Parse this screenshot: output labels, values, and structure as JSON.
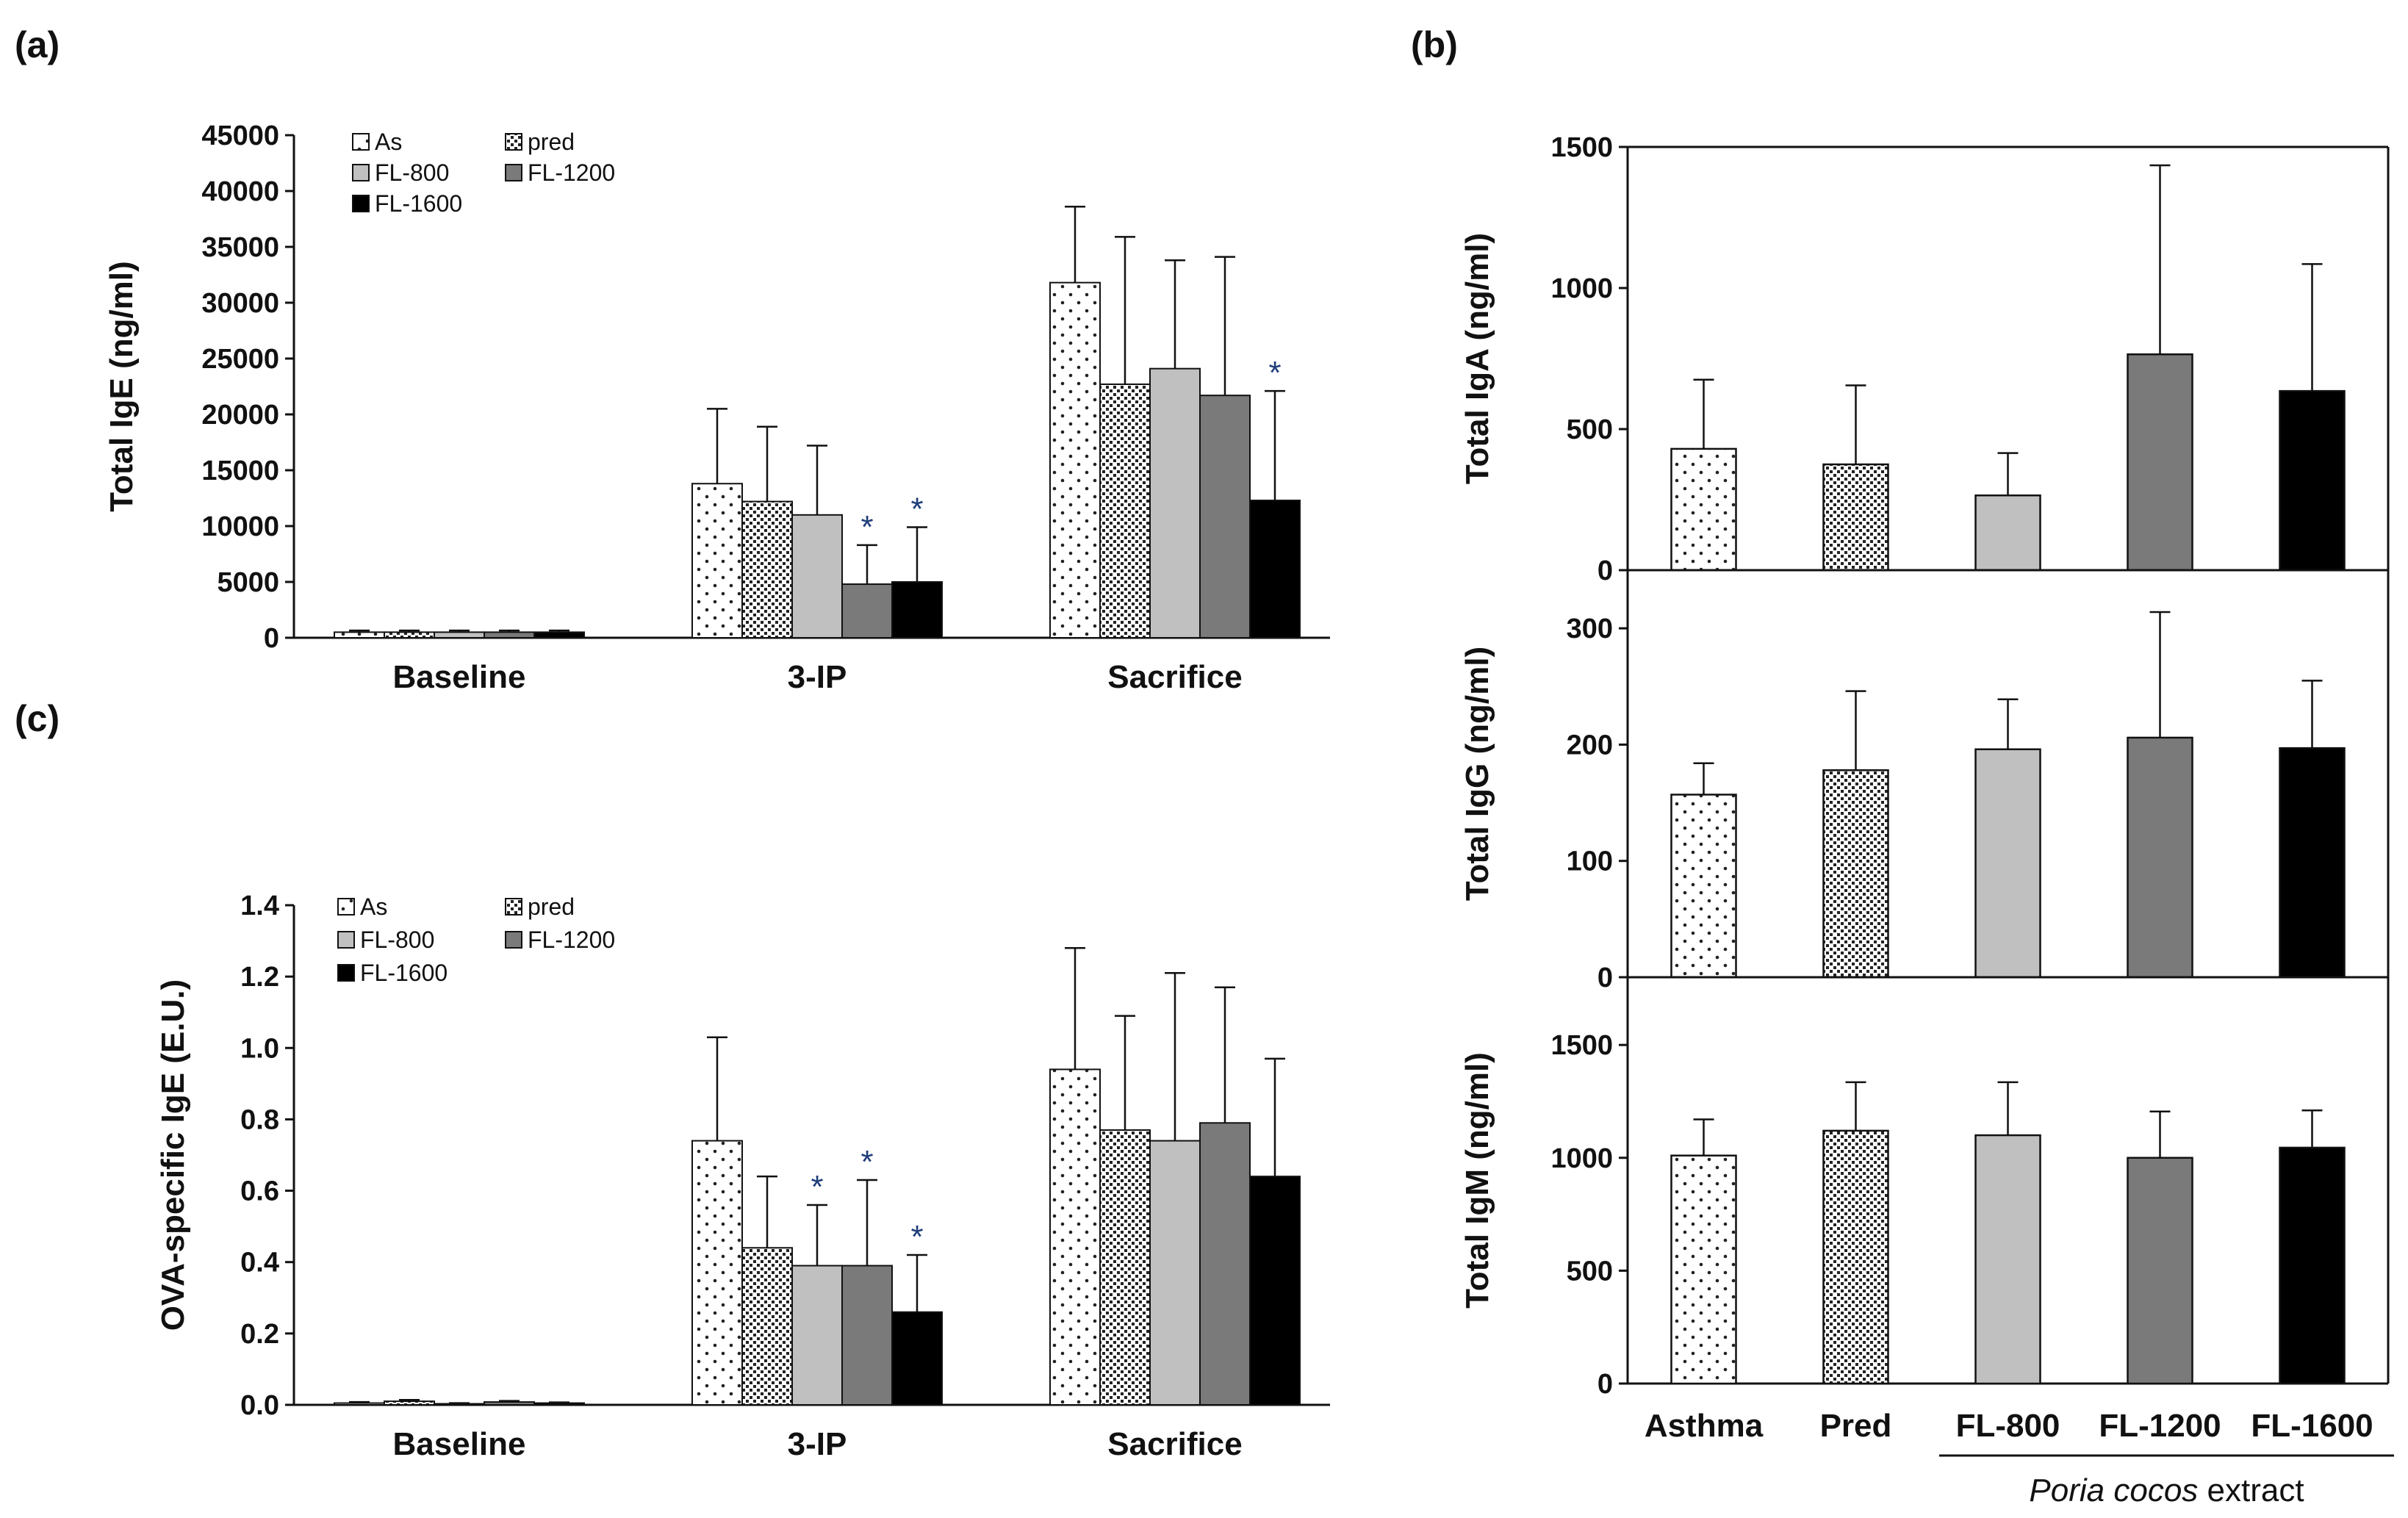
{
  "panel_labels": {
    "a": "(a)",
    "b": "(b)",
    "c": "(c)"
  },
  "colors": {
    "As": "#ffffff",
    "pred": "#ffffff",
    "FL-800": "#c0c0c0",
    "FL-1200": "#7a7a7a",
    "FL-1600": "#000000",
    "star": "#1f3d7a"
  },
  "chart_data": [
    {
      "id": "a",
      "type": "bar",
      "ylabel": "Total IgE (ng/ml)",
      "ylim": [
        0,
        45000
      ],
      "yticks": [
        0,
        5000,
        10000,
        15000,
        20000,
        25000,
        30000,
        35000,
        40000,
        45000
      ],
      "ytick_labels": [
        "0",
        "5000",
        "10000",
        "15000",
        "20000",
        "25000",
        "30000",
        "35000",
        "40000",
        "45000"
      ],
      "categories": [
        "Baseline",
        "3-IP",
        "Sacrifice"
      ],
      "legend": [
        "As",
        "pred",
        "FL-800",
        "FL-1200",
        "FL-1600"
      ],
      "series": [
        {
          "name": "As",
          "values": [
            500,
            13800,
            31800
          ],
          "errors": [
            150,
            6700,
            6800
          ],
          "sig": [
            "",
            "",
            ""
          ]
        },
        {
          "name": "pred",
          "values": [
            500,
            12200,
            22700
          ],
          "errors": [
            150,
            6700,
            13200
          ],
          "sig": [
            "",
            "",
            ""
          ]
        },
        {
          "name": "FL-800",
          "values": [
            500,
            11000,
            24100
          ],
          "errors": [
            150,
            6200,
            9700
          ],
          "sig": [
            "",
            "",
            ""
          ]
        },
        {
          "name": "FL-1200",
          "values": [
            500,
            4800,
            21700
          ],
          "errors": [
            150,
            3500,
            12400
          ],
          "sig": [
            "",
            "*",
            ""
          ]
        },
        {
          "name": "FL-1600",
          "values": [
            500,
            5000,
            12300
          ],
          "errors": [
            150,
            4900,
            9800
          ],
          "sig": [
            "",
            "*",
            "*"
          ]
        }
      ]
    },
    {
      "id": "c",
      "type": "bar",
      "ylabel": "OVA-specific IgE (E.U.)",
      "ylim": [
        0,
        1.4
      ],
      "yticks": [
        0,
        0.2,
        0.4,
        0.6,
        0.8,
        1.0,
        1.2,
        1.4
      ],
      "ytick_labels": [
        "0.0",
        "0.2",
        "0.4",
        "0.6",
        "0.8",
        "1.0",
        "1.2",
        "1.4"
      ],
      "categories": [
        "Baseline",
        "3-IP",
        "Sacrifice"
      ],
      "legend": [
        "As",
        "pred",
        "FL-800",
        "FL-1200",
        "FL-1600"
      ],
      "series": [
        {
          "name": "As",
          "values": [
            0.005,
            0.74,
            0.94
          ],
          "errors": [
            0.003,
            0.29,
            0.34
          ],
          "sig": [
            "",
            "",
            ""
          ]
        },
        {
          "name": "pred",
          "values": [
            0.01,
            0.44,
            0.77
          ],
          "errors": [
            0.004,
            0.2,
            0.32
          ],
          "sig": [
            "",
            "",
            ""
          ]
        },
        {
          "name": "FL-800",
          "values": [
            0.003,
            0.39,
            0.74
          ],
          "errors": [
            0.002,
            0.17,
            0.47
          ],
          "sig": [
            "",
            "*",
            ""
          ]
        },
        {
          "name": "FL-1200",
          "values": [
            0.008,
            0.39,
            0.79
          ],
          "errors": [
            0.003,
            0.24,
            0.38
          ],
          "sig": [
            "",
            "*",
            ""
          ]
        },
        {
          "name": "FL-1600",
          "values": [
            0.005,
            0.26,
            0.64
          ],
          "errors": [
            0.002,
            0.16,
            0.33
          ],
          "sig": [
            "",
            "*",
            ""
          ]
        }
      ]
    },
    {
      "id": "b1",
      "type": "bar",
      "ylabel": "Total IgA (ng/ml)",
      "ylim": [
        0,
        1500
      ],
      "yticks": [
        0,
        500,
        1000,
        1500
      ],
      "ytick_labels": [
        "0",
        "500",
        "1000",
        "1500"
      ],
      "categories": [
        "Asthma",
        "Pred",
        "FL-800",
        "FL-1200",
        "FL-1600"
      ],
      "values": [
        430,
        375,
        265,
        765,
        635
      ],
      "errors": [
        245,
        280,
        150,
        670,
        450
      ]
    },
    {
      "id": "b2",
      "type": "bar",
      "ylabel": "Total IgG (ng/ml)",
      "ylim": [
        0,
        350
      ],
      "yticks": [
        0,
        100,
        200,
        300
      ],
      "ytick_labels": [
        "0",
        "100",
        "200",
        "300"
      ],
      "categories": [
        "Asthma",
        "Pred",
        "FL-800",
        "FL-1200",
        "FL-1600"
      ],
      "values": [
        157,
        178,
        196,
        206,
        197
      ],
      "errors": [
        27,
        68,
        43,
        108,
        58
      ]
    },
    {
      "id": "b3",
      "type": "bar",
      "ylabel": "Total IgM (ng/ml)",
      "ylim": [
        0,
        1800
      ],
      "yticks": [
        0,
        500,
        1000,
        1500
      ],
      "ytick_labels": [
        "0",
        "500",
        "1000",
        "1500"
      ],
      "categories": [
        "Asthma",
        "Pred",
        "FL-800",
        "FL-1200",
        "FL-1600"
      ],
      "values": [
        1010,
        1120,
        1100,
        1000,
        1045
      ],
      "errors": [
        160,
        215,
        235,
        205,
        165
      ],
      "group_label_italic": "Poria cocos",
      "group_label_rest": " extract"
    }
  ]
}
